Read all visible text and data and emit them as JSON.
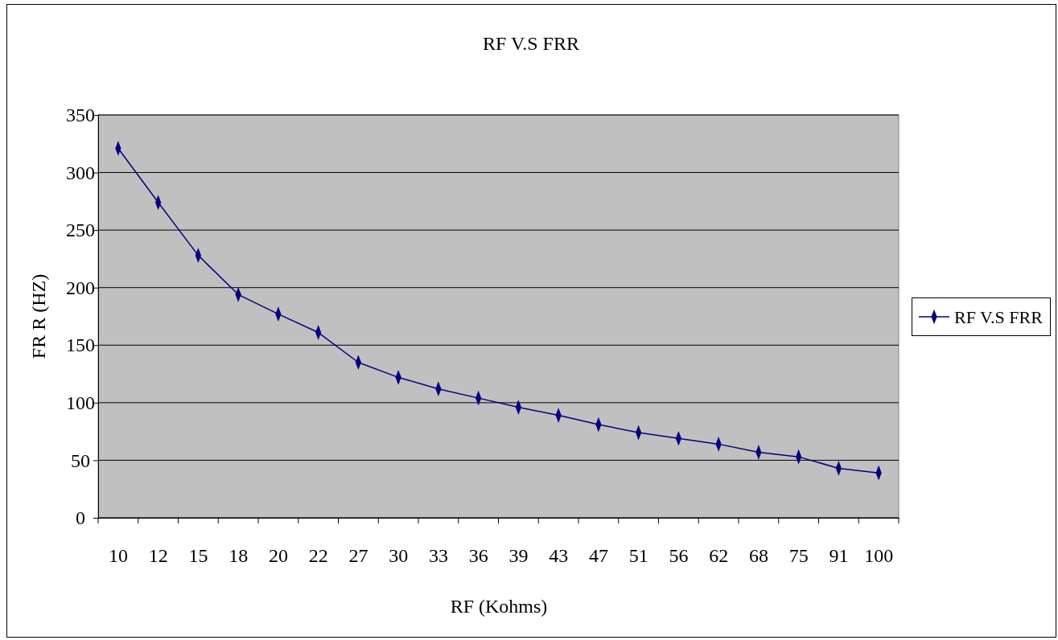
{
  "chart_data": {
    "type": "line",
    "title": "RF V.S FRR",
    "xlabel": "RF (Kohms)",
    "ylabel": "FR R  (HZ)",
    "categories": [
      "10",
      "12",
      "15",
      "18",
      "20",
      "22",
      "27",
      "30",
      "33",
      "36",
      "39",
      "43",
      "47",
      "51",
      "56",
      "62",
      "68",
      "75",
      "91",
      "100"
    ],
    "series": [
      {
        "name": "RF V.S FRR",
        "color": "#000080",
        "values": [
          321,
          274,
          228,
          194,
          177,
          161,
          135,
          122,
          112,
          104,
          96,
          89,
          81,
          74,
          69,
          64,
          57,
          53,
          43,
          39
        ]
      }
    ],
    "ylim": [
      0,
      350
    ],
    "yticks": [
      0,
      50,
      100,
      150,
      200,
      250,
      300,
      350
    ],
    "grid": "y",
    "legend": "right",
    "marker": "diamond",
    "line_style": "solid"
  }
}
